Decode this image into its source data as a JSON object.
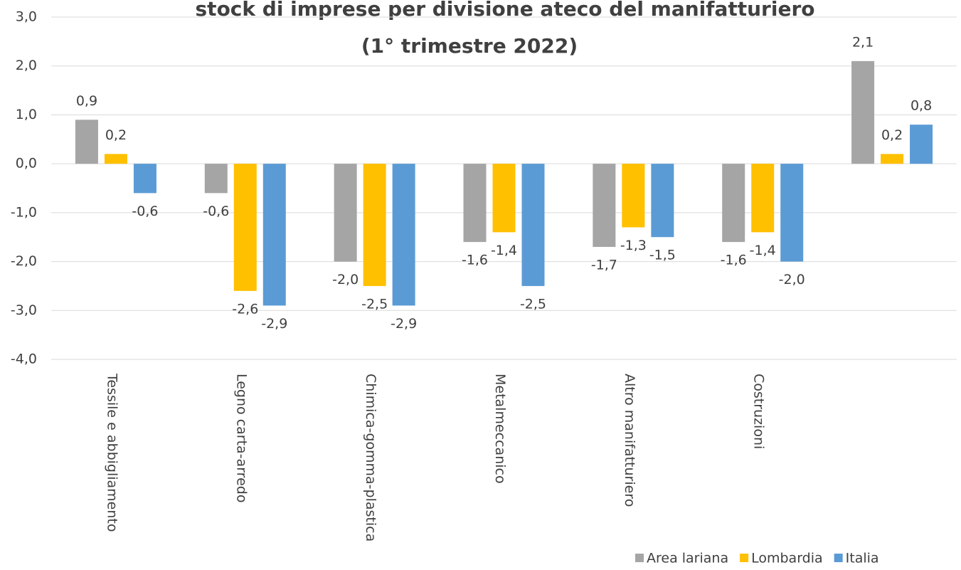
{
  "chart_data": {
    "type": "bar",
    "title": "stock di imprese per divisione ateco del manifatturiero",
    "subtitle": "(1° trimestre 2022)",
    "categories": [
      "Tessile e abbigliamento",
      "Legno carta-arredo",
      "Chimica-gomma-plastica",
      "Metalmeccanico",
      "Altro manifatturiero",
      "Costruzioni",
      null
    ],
    "series": [
      {
        "name": "Area lariana",
        "color": "#a5a5a5",
        "values": [
          0.9,
          -0.6,
          -2.0,
          -1.6,
          -1.7,
          -1.6,
          2.1
        ],
        "value_labels": [
          "0,9",
          "-0,6",
          "-2,0",
          "-1,6",
          "-1,7",
          "-1,6",
          "2,1"
        ]
      },
      {
        "name": "Lombardia",
        "color": "#ffc000",
        "values": [
          0.2,
          -2.6,
          -2.5,
          -1.4,
          -1.3,
          -1.4,
          0.2
        ],
        "value_labels": [
          "0,2",
          "-2,6",
          "-2,5",
          "-1,4",
          "-1,3",
          "-1,4",
          "0,2"
        ]
      },
      {
        "name": "Italia",
        "color": "#5b9bd5",
        "values": [
          -0.6,
          -2.9,
          -2.9,
          -2.5,
          -1.5,
          -2.0,
          0.8
        ],
        "value_labels": [
          "-0,6",
          "-2,9",
          "-2,9",
          "-2,5",
          "-1,5",
          "-2,0",
          "0,8"
        ]
      }
    ],
    "ylim": [
      -4,
      3
    ],
    "yticks": [
      {
        "value": 3,
        "label": "3,0"
      },
      {
        "value": 2,
        "label": "2,0"
      },
      {
        "value": 1,
        "label": "1,0"
      },
      {
        "value": 0,
        "label": "0,0"
      },
      {
        "value": -1,
        "label": "-1,0"
      },
      {
        "value": -2,
        "label": "-2,0"
      },
      {
        "value": -3,
        "label": "-3,0"
      },
      {
        "value": -4,
        "label": "-4,0"
      }
    ],
    "grid": true,
    "legend": "bottom-right"
  }
}
